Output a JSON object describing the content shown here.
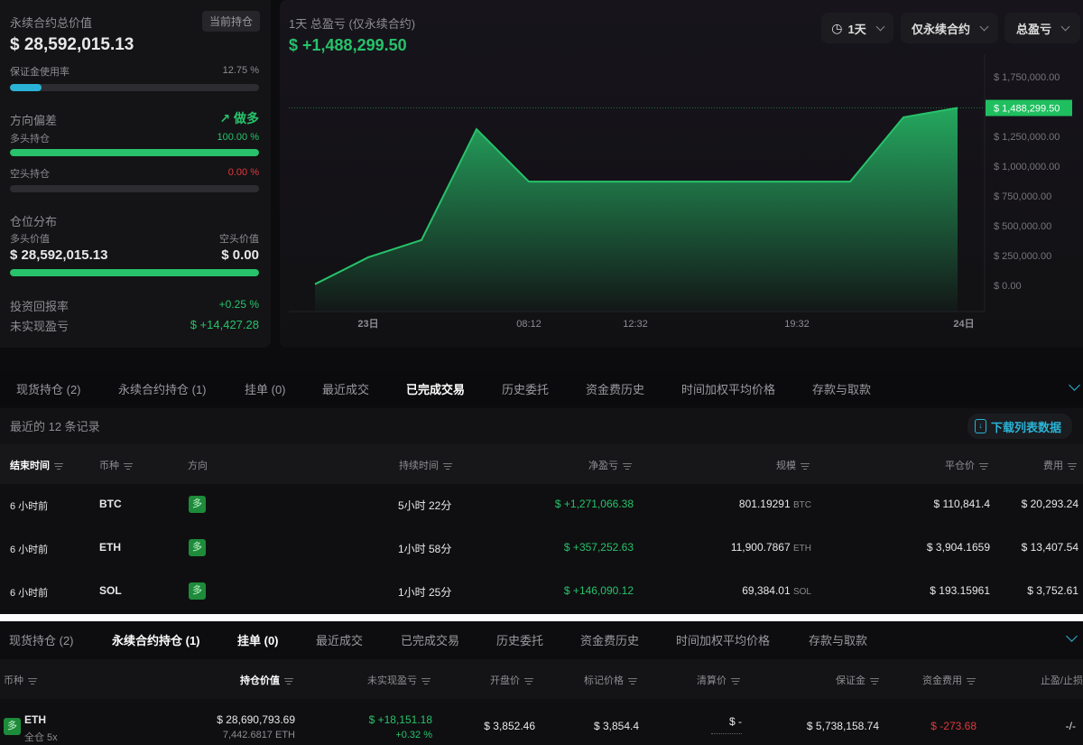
{
  "summary": {
    "title": "永续合约总价值",
    "current_positions_btn": "当前持仓",
    "total_value": "$ 28,592,015.13",
    "margin_usage_label": "保证金使用率",
    "margin_usage_value": "12.75 %",
    "margin_usage_pct": 12.75,
    "bias_label": "方向偏差",
    "bias_value": "做多",
    "long_label": "多头持仓",
    "long_value": "100.00 %",
    "long_pct": 100,
    "short_label": "空头持仓",
    "short_value": "0.00 %",
    "short_pct": 0,
    "dist_label": "仓位分布",
    "long_val_label": "多头价值",
    "short_val_label": "空头价值",
    "long_val": "$ 28,592,015.13",
    "short_val": "$ 0.00",
    "dist_long_pct": 100,
    "roi_label": "投资回报率",
    "roi_value": "+0.25 %",
    "upnl_label": "未实现盈亏",
    "upnl_value": "$ +14,427.28"
  },
  "chart_header": {
    "title": "1天 总盈亏 (仅永续合约)",
    "value": "$ +1,488,299.50",
    "range": "1天",
    "scope": "仅永续合约",
    "metric": "总盈亏"
  },
  "chart_data": {
    "type": "area",
    "title": "1天 总盈亏 (仅永续合约)",
    "x_ticks": [
      "23日",
      "08:12",
      "12:32",
      "19:32",
      "24日"
    ],
    "y_ticks": [
      "$ 0.00",
      "$ 250,000.00",
      "$ 500,000.00",
      "$ 750,000.00",
      "$ 1,000,000.00",
      "$ 1,250,000.00",
      "$ 1,750,000.00"
    ],
    "ylim": [
      0,
      1750000
    ],
    "current_label": "$ 1,488,299.50",
    "current_value": 1488299.5,
    "values": [
      10000,
      235000,
      380000,
      1310000,
      870000,
      870000,
      1410000,
      1488299.5
    ],
    "color": "#27c26b",
    "grid": false
  },
  "tabs": [
    "现货持仓 (2)",
    "永续合约持仓 (1)",
    "挂单 (0)",
    "最近成交",
    "已完成交易",
    "历史委托",
    "资金费历史",
    "时间加权平均价格",
    "存款与取款"
  ],
  "trades": {
    "count_label": "最近的 12 条记录",
    "download": "下载列表数据",
    "headers": [
      "结束时间",
      "币种",
      "方向",
      "持续时间",
      "净盈亏",
      "规模",
      "平仓价",
      "费用"
    ],
    "rows": [
      {
        "time": "6 小时前",
        "coin": "BTC",
        "dir": "多",
        "dur": "5小时 22分",
        "pnl": "$ +1,271,066.38",
        "size": "801.19291",
        "unit": "BTC",
        "price": "$ 110,841.4",
        "fee": "$ 20,293.24"
      },
      {
        "time": "6 小时前",
        "coin": "ETH",
        "dir": "多",
        "dur": "1小时 58分",
        "pnl": "$ +357,252.63",
        "size": "11,900.7867",
        "unit": "ETH",
        "price": "$ 3,904.1659",
        "fee": "$ 13,407.54"
      },
      {
        "time": "6 小时前",
        "coin": "SOL",
        "dir": "多",
        "dur": "1小时 25分",
        "pnl": "$ +146,090.12",
        "size": "69,384.01",
        "unit": "SOL",
        "price": "$ 193.15961",
        "fee": "$ 3,752.61"
      }
    ]
  },
  "positions": {
    "headers": [
      "币种",
      "持仓价值",
      "未实现盈亏",
      "开盘价",
      "标记价格",
      "清算价",
      "保证金",
      "资金费用",
      "止盈/止损"
    ],
    "row": {
      "dir": "多",
      "coin": "ETH",
      "mode": "全仓 5x",
      "value": "$ 28,690,793.69",
      "size": "7,442.6817 ETH",
      "upnl": "$ +18,151.18",
      "upnl_pct": "+0.32 %",
      "open": "$ 3,852.46",
      "mark": "$ 3,854.4",
      "liq": "$ -",
      "margin": "$ 5,738,158.74",
      "funding": "$ -273.68",
      "tpsl": "-/-"
    }
  }
}
